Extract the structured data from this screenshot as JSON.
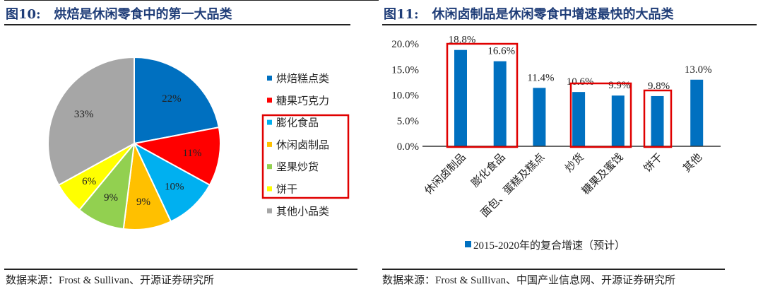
{
  "left": {
    "title": "图10:   烘焙是休闲零食中的第一大品类",
    "source": "数据来源：Frost & Sullivan、开源证券研究所"
  },
  "right": {
    "title": "图11:   休闲卤制品是休闲零食中增速最快的大品类",
    "source": "数据来源：Frost & Sullivan、中国产业信息网、开源证券研究所"
  },
  "chart_data": [
    {
      "type": "pie",
      "slices": [
        {
          "label": "烘焙糕点类",
          "value": 22,
          "display": "22%",
          "color": "#0070C0"
        },
        {
          "label": "糖果巧克力",
          "value": 11,
          "display": "11%",
          "color": "#FF0000"
        },
        {
          "label": "膨化食品",
          "value": 10,
          "display": "10%",
          "color": "#00B0F0"
        },
        {
          "label": "休闲卤制品",
          "value": 9,
          "display": "9%",
          "color": "#FFC000"
        },
        {
          "label": "坚果炒货",
          "value": 9,
          "display": "9%",
          "color": "#92D050"
        },
        {
          "label": "饼干",
          "value": 6,
          "display": "6%",
          "color": "#FFFF00"
        },
        {
          "label": "其他小品类",
          "value": 33,
          "display": "33%",
          "color": "#A6A6A6"
        }
      ],
      "legend": "right",
      "highlighted": [
        "膨化食品",
        "休闲卤制品",
        "坚果炒货",
        "饼干"
      ]
    },
    {
      "type": "bar",
      "categories": [
        "休闲卤制品",
        "膨化食品",
        "面包、蛋糕及糕点",
        "炒货",
        "糖果及蜜饯",
        "饼干",
        "其他"
      ],
      "series": [
        {
          "name": "2015-2020年的复合增速（预计）",
          "values": [
            18.8,
            16.6,
            11.4,
            10.6,
            9.9,
            9.8,
            13.0
          ],
          "labels": [
            "18.8%",
            "16.6%",
            "11.4%",
            "10.6%",
            "9.9%",
            "9.8%",
            "13.0%"
          ],
          "color": "#0070C0"
        }
      ],
      "yticks": [
        "0.0%",
        "5.0%",
        "10.0%",
        "15.0%",
        "20.0%"
      ],
      "ylim": [
        0,
        20
      ],
      "legend": "bottom",
      "highlight_groups": [
        [
          0,
          1
        ],
        [
          3,
          4
        ],
        [
          5
        ]
      ]
    }
  ]
}
